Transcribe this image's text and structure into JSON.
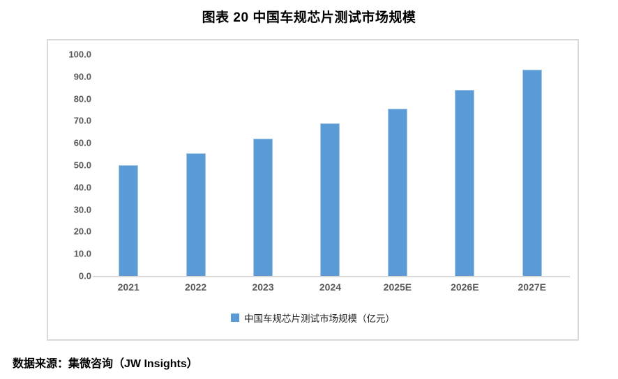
{
  "page": {
    "title": "图表 20 中国车规芯片测试市场规模",
    "source_note": "数据来源：集微咨询（JW Insights）"
  },
  "legend": {
    "label": "中国车规芯片测试市场规模（亿元）"
  },
  "colors": {
    "bar_fill": "#5B9BD5",
    "bar_edge": "#A9C9E8",
    "axis_line": "#D9D9D9",
    "chart_border": "#D9D9D9",
    "tick_label": "#595959",
    "title_text": "#000000"
  },
  "chart_data": {
    "type": "bar",
    "title": "图表 20 中国车规芯片测试市场规模",
    "categories": [
      "2021",
      "2022",
      "2023",
      "2024",
      "2025E",
      "2026E",
      "2027E"
    ],
    "values": [
      50.0,
      55.3,
      62.0,
      69.0,
      75.5,
      84.0,
      93.0
    ],
    "series_name": "中国车规芯片测试市场规模（亿元）",
    "ylabel": "",
    "xlabel": "",
    "ylim": [
      0,
      100
    ],
    "ytick_step": 10,
    "ytick_labels": [
      "0.0",
      "10.0",
      "20.0",
      "30.0",
      "40.0",
      "50.0",
      "60.0",
      "70.0",
      "80.0",
      "90.0",
      "100.0"
    ],
    "grid": false,
    "legend_position": "bottom",
    "source": "数据来源：集微咨询（JW Insights）"
  }
}
